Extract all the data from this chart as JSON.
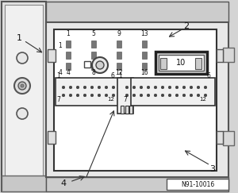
{
  "bg_color": "#f0f0f0",
  "text_color": "#111111",
  "ref_label": "N91-10016",
  "pin_top_labels": [
    "1",
    "5",
    "9",
    "13"
  ],
  "pin_mid_labels": [
    "4",
    "8",
    "12",
    "16"
  ],
  "label1": "1",
  "label2": "2",
  "label3": "3",
  "label4": "4",
  "label10": "10"
}
